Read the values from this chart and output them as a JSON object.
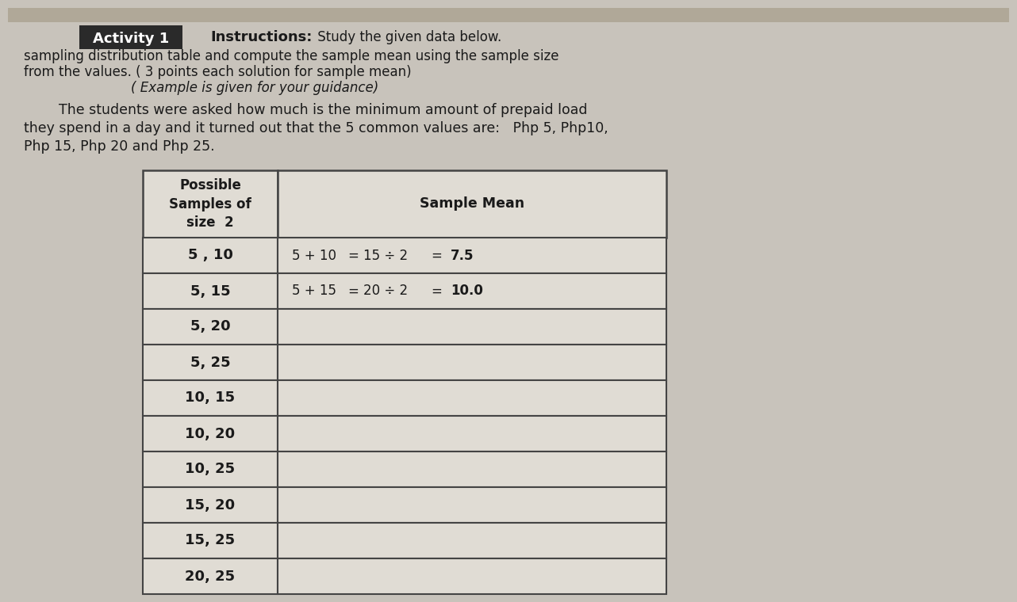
{
  "activity_label": "Activity 1",
  "instructions_bold": "Instructions:",
  "line1_rest": " Study the given data below.",
  "line2": "sampling distribution table and compute the sample mean using the sample size",
  "line3": "from the values. ( 3 points each solution for sample mean)",
  "line4_italic": "( Example is given for your guidance)",
  "para_line1": "        The students were asked how much is the minimum amount of prepaid load",
  "para_line2": "they spend in a day and it turned out that the 5 common values are:   Php 5, Php10,",
  "para_line3": "Php 15, Php 20 and Php 25.",
  "col1_header_lines": [
    "Possible",
    "Samples of",
    "size  2"
  ],
  "col2_header": "Sample Mean",
  "rows": [
    {
      "sample": "5 , 10",
      "mean_col1": "5 + 10",
      "mean_eq1": "=",
      "mean_col2": "15 ÷ 2",
      "mean_eq2": "=",
      "mean_result": "7.5"
    },
    {
      "sample": "5, 15",
      "mean_col1": "5 + 15",
      "mean_eq1": "=",
      "mean_col2": "20 ÷ 2",
      "mean_eq2": "=",
      "mean_result": "10.0"
    },
    {
      "sample": "5, 20",
      "mean_col1": "",
      "mean_eq1": "",
      "mean_col2": "",
      "mean_eq2": "",
      "mean_result": ""
    },
    {
      "sample": "5, 25",
      "mean_col1": "",
      "mean_eq1": "",
      "mean_col2": "",
      "mean_eq2": "",
      "mean_result": ""
    },
    {
      "sample": "10, 15",
      "mean_col1": "",
      "mean_eq1": "",
      "mean_col2": "",
      "mean_eq2": "",
      "mean_result": ""
    },
    {
      "sample": "10, 20",
      "mean_col1": "",
      "mean_eq1": "",
      "mean_col2": "",
      "mean_eq2": "",
      "mean_result": ""
    },
    {
      "sample": "10, 25",
      "mean_col1": "",
      "mean_eq1": "",
      "mean_col2": "",
      "mean_eq2": "",
      "mean_result": ""
    },
    {
      "sample": "15, 20",
      "mean_col1": "",
      "mean_eq1": "",
      "mean_col2": "",
      "mean_eq2": "",
      "mean_result": ""
    },
    {
      "sample": "15, 25",
      "mean_col1": "",
      "mean_eq1": "",
      "mean_col2": "",
      "mean_eq2": "",
      "mean_result": ""
    },
    {
      "sample": "20, 25",
      "mean_col1": "",
      "mean_eq1": "",
      "mean_col2": "",
      "mean_eq2": "",
      "mean_result": ""
    }
  ],
  "bg_color": "#c8c3bb",
  "paper_color": "#d8d3cb",
  "table_bg": "#e0dcd4",
  "border_color": "#444444",
  "text_color": "#1a1a1a",
  "activity_bg": "#2a2a2a",
  "activity_text_color": "#ffffff",
  "top_strip_color": "#b0a898"
}
